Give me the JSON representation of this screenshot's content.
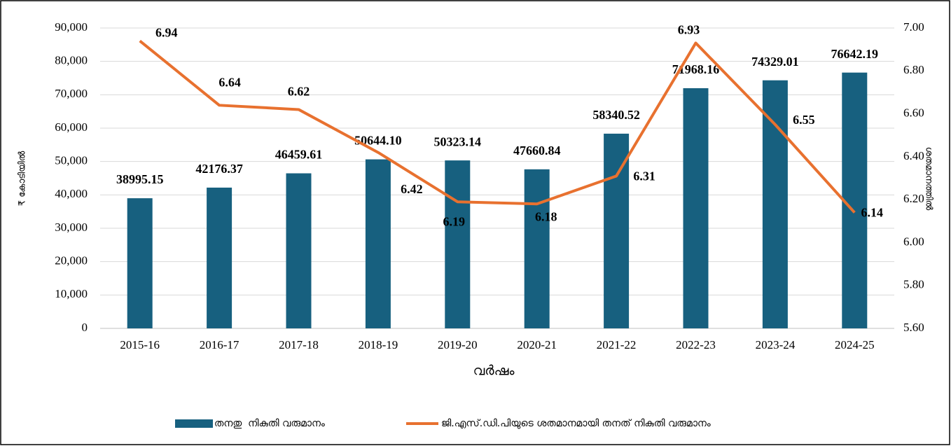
{
  "chart_data": {
    "type": "bar-line",
    "categories": [
      "2015-16",
      "2016-17",
      "2017-18",
      "2018-19",
      "2019-20",
      "2020-21",
      "2021-22",
      "2022-23",
      "2023-24",
      "2024-25"
    ],
    "series": [
      {
        "name": "തനതു  നികുതി വരുമാനം",
        "type": "bar",
        "color": "#17607f",
        "values": [
          38995.15,
          42176.37,
          46459.61,
          50644.1,
          50323.14,
          47660.84,
          58340.52,
          71968.16,
          74329.01,
          76642.19
        ],
        "value_labels": [
          "38995.15",
          "42176.37",
          "46459.61",
          "50644.10",
          "50323.14",
          "47660.84",
          "58340.52",
          "71968.16",
          "74329.01",
          "76642.19"
        ]
      },
      {
        "name": "ജി.എസ്.ഡി.പിയുടെ ശതമാനമായി തനത് നികുതി വരുമാനം",
        "type": "line",
        "axis": "y2",
        "color": "#e8712f",
        "values": [
          6.94,
          6.64,
          6.62,
          6.42,
          6.19,
          6.18,
          6.31,
          6.93,
          6.55,
          6.14
        ]
      }
    ],
    "xlabel": "വർഷം",
    "ylabel": "₹ കോടിയിൽ",
    "y2label": "ശതമാനത്തിൽ",
    "ylim": [
      0,
      90000
    ],
    "yticks": [
      0,
      {
        "value": 10000,
        "label": "10,000"
      },
      {
        "value": 20000,
        "label": "20,000"
      },
      {
        "value": 30000,
        "label": "30,000"
      },
      {
        "value": 40000,
        "label": "40,000"
      },
      {
        "value": 50000,
        "label": "50,000"
      },
      {
        "value": 60000,
        "label": "60,000"
      },
      {
        "value": 70000,
        "label": "70,000"
      },
      {
        "value": 80000,
        "label": "80,000"
      },
      {
        "value": 90000,
        "label": "90,000"
      }
    ],
    "y2lim": [
      5.6,
      7.0
    ],
    "y2ticks": [
      {
        "value": 5.6,
        "label": "5.60"
      },
      {
        "value": 5.8,
        "label": "5.80"
      },
      {
        "value": 6.0,
        "label": "6.00"
      },
      {
        "value": 6.2,
        "label": "6.20"
      },
      {
        "value": 6.4,
        "label": "6.40"
      },
      {
        "value": 6.6,
        "label": "6.60"
      },
      {
        "value": 6.8,
        "label": "6.80"
      },
      {
        "value": 7.0,
        "label": "7.00"
      }
    ],
    "grid": true,
    "legend": "bottom"
  }
}
